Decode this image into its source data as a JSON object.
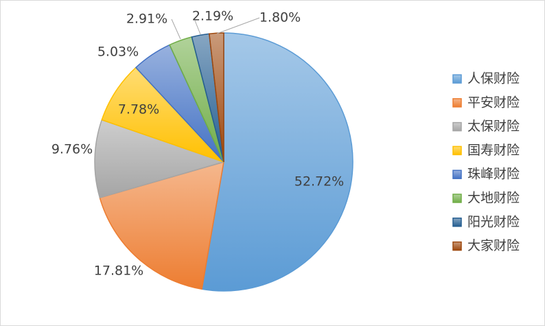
{
  "chart_data": {
    "type": "pie",
    "categories": [
      "人保财险",
      "平安财险",
      "太保财险",
      "国寿财险",
      "珠峰财险",
      "大地财险",
      "阳光财险",
      "大家财险"
    ],
    "values": [
      52.72,
      17.81,
      9.76,
      7.78,
      5.03,
      2.91,
      2.19,
      1.8
    ],
    "value_labels": [
      "52.72%",
      "17.81%",
      "9.76%",
      "7.78%",
      "5.03%",
      "2.91%",
      "2.19%",
      "1.80%"
    ],
    "colors": [
      "#5b9bd5",
      "#ed7d31",
      "#a5a5a5",
      "#ffc000",
      "#4472c4",
      "#70ad47",
      "#255e91",
      "#9e480e"
    ],
    "legend": "right"
  }
}
